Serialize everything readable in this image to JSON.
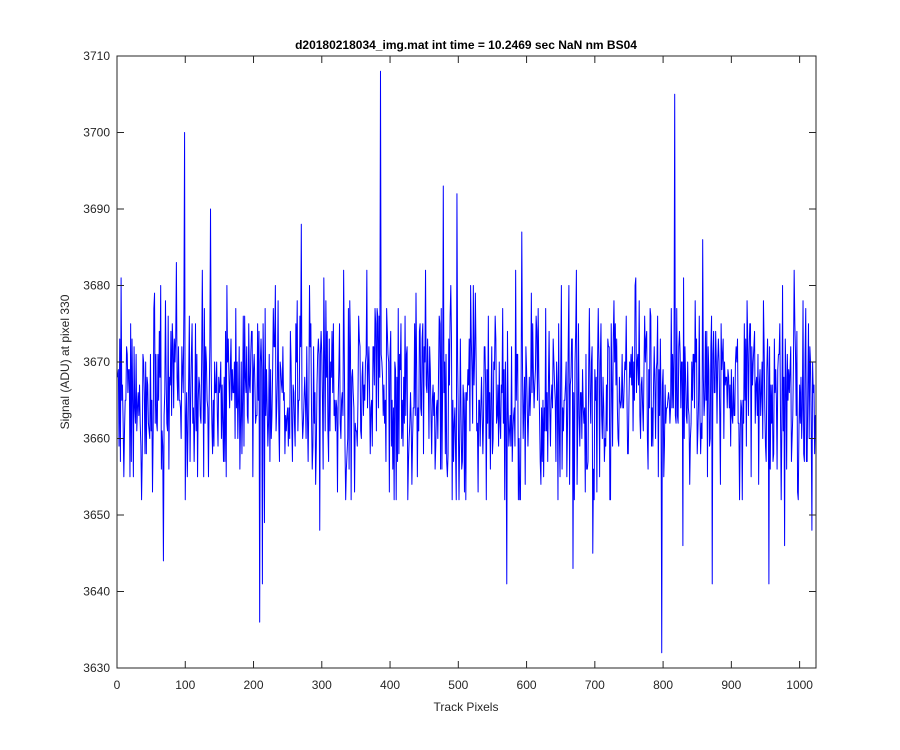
{
  "chart_data": {
    "type": "line",
    "title": "d20180218034_img.mat int time = 10.2469 sec  NaN nm BS04",
    "xlabel": "Track Pixels",
    "ylabel": "Signal (ADU) at pixel 330",
    "xlim": [
      0,
      1024
    ],
    "ylim": [
      3630,
      3710
    ],
    "xticks": [
      0,
      100,
      200,
      300,
      400,
      500,
      600,
      700,
      800,
      900,
      1000
    ],
    "yticks": [
      3630,
      3640,
      3650,
      3660,
      3670,
      3680,
      3690,
      3700,
      3710
    ],
    "xtick_labels": [
      "0",
      "100",
      "200",
      "300",
      "400",
      "500",
      "600",
      "700",
      "800",
      "900",
      "1000"
    ],
    "ytick_labels": [
      "3630",
      "3640",
      "3650",
      "3660",
      "3670",
      "3680",
      "3690",
      "3700",
      "3710"
    ],
    "grid": false,
    "legend": "none",
    "line_color": "#0000ff",
    "box": true,
    "series": [
      {
        "x_start": 1,
        "x_step": 1,
        "baseline": 3666,
        "noise_std": 6.5,
        "seed": 330,
        "count": 1024,
        "highlights": [
          {
            "x": 6,
            "y": 3681
          },
          {
            "x": 10,
            "y": 3655
          },
          {
            "x": 55,
            "y": 3679
          },
          {
            "x": 68,
            "y": 3644
          },
          {
            "x": 87,
            "y": 3683
          },
          {
            "x": 99,
            "y": 3700
          },
          {
            "x": 137,
            "y": 3690
          },
          {
            "x": 209,
            "y": 3636
          },
          {
            "x": 213,
            "y": 3641
          },
          {
            "x": 216,
            "y": 3649
          },
          {
            "x": 270,
            "y": 3688
          },
          {
            "x": 297,
            "y": 3648
          },
          {
            "x": 386,
            "y": 3708
          },
          {
            "x": 478,
            "y": 3693
          },
          {
            "x": 498,
            "y": 3692
          },
          {
            "x": 571,
            "y": 3641
          },
          {
            "x": 593,
            "y": 3687
          },
          {
            "x": 668,
            "y": 3643
          },
          {
            "x": 697,
            "y": 3645
          },
          {
            "x": 798,
            "y": 3632
          },
          {
            "x": 817,
            "y": 3705
          },
          {
            "x": 829,
            "y": 3646
          },
          {
            "x": 858,
            "y": 3686
          },
          {
            "x": 872,
            "y": 3641
          },
          {
            "x": 955,
            "y": 3641
          },
          {
            "x": 978,
            "y": 3646
          },
          {
            "x": 1018,
            "y": 3648
          }
        ]
      }
    ]
  }
}
